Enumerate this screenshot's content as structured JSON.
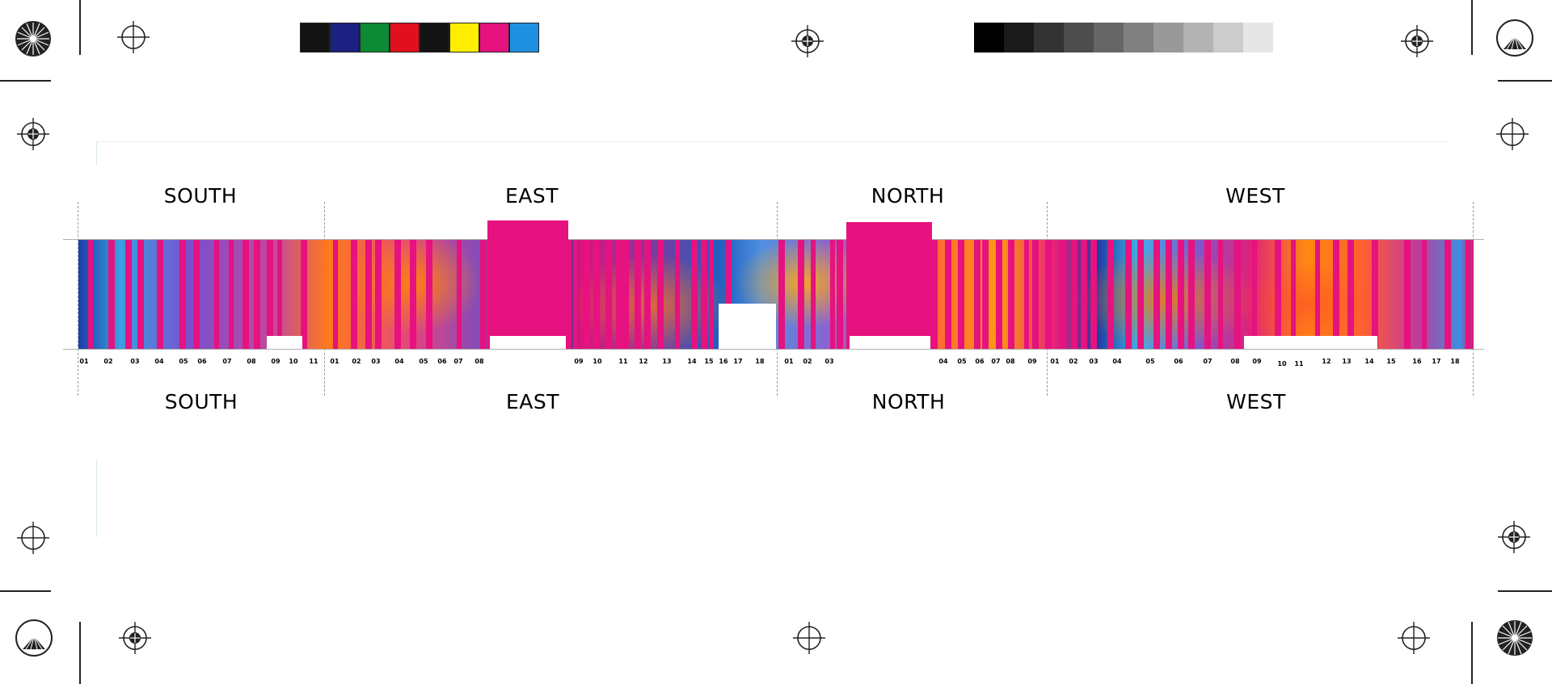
{
  "sections_top": [
    "SOUTH",
    "EAST",
    "NORTH",
    "WEST"
  ],
  "sections_bottom": [
    "SOUTH",
    "EAST",
    "NORTH",
    "WEST"
  ],
  "numbers": {
    "south": [
      "01",
      "02",
      "03",
      "04",
      "05",
      "06",
      "07",
      "08",
      "09",
      "10",
      "11"
    ],
    "east": [
      "01",
      "02",
      "03",
      "04",
      "05",
      "06",
      "07",
      "08",
      "09",
      "10",
      "11",
      "12",
      "13",
      "14",
      "15",
      "16",
      "17",
      "18"
    ],
    "north": [
      "01",
      "02",
      "03",
      "04",
      "05",
      "06",
      "07",
      "08",
      "09"
    ],
    "west": [
      "01",
      "02",
      "03",
      "04",
      "05",
      "06",
      "07",
      "08",
      "09",
      "10",
      "11",
      "12",
      "13",
      "14",
      "15",
      "16",
      "17",
      "18"
    ]
  },
  "color_bar": [
    "#141414",
    "#1c2080",
    "#0e8a34",
    "#e0101e",
    "#141414",
    "#ffee00",
    "#e5127f",
    "#1e90e0"
  ],
  "gray_bar": [
    "#000000",
    "#1a1a1a",
    "#333333",
    "#4d4d4d",
    "#666666",
    "#808080",
    "#999999",
    "#b3b3b3",
    "#cccccc",
    "#e6e6e6"
  ],
  "accent": "#e5127f",
  "icons": [
    "registration-mark-icon",
    "star-target-icon",
    "crop-mark-icon"
  ]
}
